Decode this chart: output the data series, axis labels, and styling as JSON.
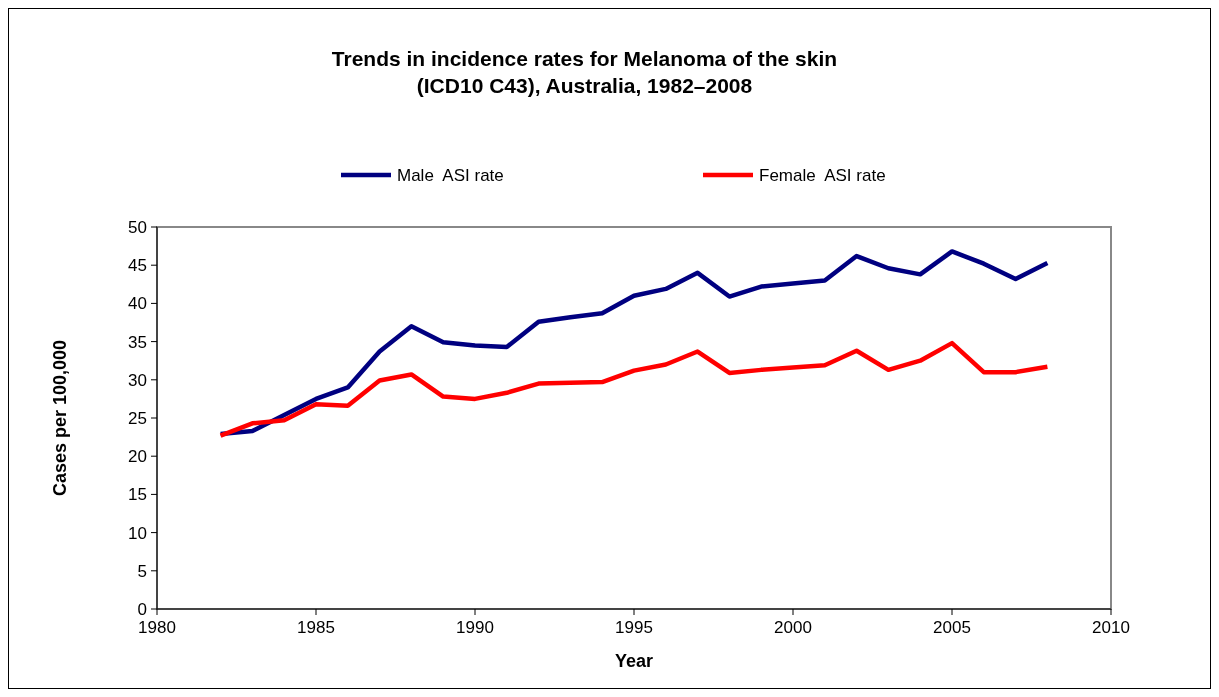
{
  "chart_data": {
    "type": "line",
    "title": "Trends in incidence rates for Melanoma of the skin\n(ICD10 C43), Australia, 1982–2008",
    "xlabel": "Year",
    "ylabel": "Cases per 100,000",
    "x": [
      1982,
      1983,
      1984,
      1985,
      1986,
      1987,
      1988,
      1989,
      1990,
      1991,
      1992,
      1993,
      1994,
      1995,
      1996,
      1997,
      1998,
      1999,
      2000,
      2001,
      2002,
      2003,
      2004,
      2005,
      2006,
      2007,
      2008
    ],
    "series": [
      {
        "name": "Male  ASI rate",
        "color": "#000080",
        "values": [
          22.9,
          23.3,
          25.4,
          27.5,
          29.0,
          33.7,
          37.0,
          34.9,
          34.5,
          34.3,
          37.6,
          38.2,
          38.7,
          41.0,
          41.9,
          44.0,
          40.9,
          42.2,
          42.6,
          43.0,
          46.2,
          44.6,
          43.8,
          46.8,
          45.2,
          43.2,
          45.3
        ]
      },
      {
        "name": "Female  ASI rate",
        "color": "#ff0000",
        "values": [
          22.7,
          24.3,
          24.7,
          26.8,
          26.6,
          29.9,
          30.7,
          27.8,
          27.5,
          28.3,
          29.5,
          29.6,
          29.7,
          31.2,
          32.0,
          33.7,
          30.9,
          31.3,
          31.6,
          31.9,
          33.8,
          31.3,
          32.5,
          34.8,
          31.0,
          31.0,
          31.7
        ]
      }
    ],
    "xlim": [
      1980,
      2010
    ],
    "xticks": [
      1980,
      1985,
      1990,
      1995,
      2000,
      2005,
      2010
    ],
    "ylim": [
      0,
      50
    ],
    "yticks": [
      0,
      5,
      10,
      15,
      20,
      25,
      30,
      35,
      40,
      45,
      50
    ],
    "grid": false,
    "legend": "top",
    "marker": "none",
    "line_style": "solid"
  }
}
